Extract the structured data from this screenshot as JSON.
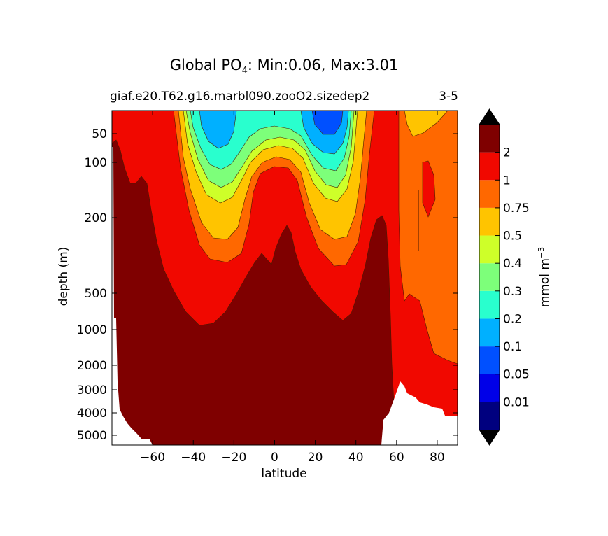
{
  "chart_data": {
    "type": "contour",
    "title": {
      "prefix": "Global PO",
      "subscript": "4",
      "suffix": ": Min:0.06, Max:3.01"
    },
    "subtitle_left": "giaf.e20.T62.g16.marbl090.zooO2.sizedep2",
    "subtitle_right": "3-5",
    "xlabel": "latitude",
    "ylabel": "depth (m)",
    "xlim": [
      -80,
      90
    ],
    "xticks": [
      -60,
      -40,
      -20,
      0,
      20,
      40,
      60,
      80
    ],
    "xtick_labels": [
      "−60",
      "−40",
      "−20",
      "0",
      "20",
      "40",
      "60",
      "80"
    ],
    "ylim": [
      0,
      5500
    ],
    "yscale": "stretched (non-linear) depth axis, increasing downward",
    "yticks": [
      50,
      100,
      200,
      500,
      1000,
      2000,
      3000,
      4000,
      5000
    ],
    "ytick_labels": [
      "50",
      "100",
      "200",
      "500",
      "1000",
      "2000",
      "3000",
      "4000",
      "5000"
    ],
    "colorbar": {
      "label": "mmol m",
      "label_superscript": "−3",
      "levels": [
        0.01,
        0.05,
        0.1,
        0.2,
        0.3,
        0.4,
        0.5,
        0.75,
        1,
        2
      ],
      "level_labels": [
        "0.01",
        "0.05",
        "0.1",
        "0.2",
        "0.3",
        "0.4",
        "0.5",
        "0.75",
        "1",
        "2"
      ],
      "colors": [
        "#00007f",
        "#0000e8",
        "#0050ff",
        "#00b0ff",
        "#29ffce",
        "#7dff7a",
        "#ceff29",
        "#ffc400",
        "#ff6800",
        "#f10800",
        "#7f0000"
      ],
      "extend": "both",
      "extend_color": "#000000"
    },
    "land_color": "#ffffff",
    "contour_line_color": "#4a1a00"
  }
}
